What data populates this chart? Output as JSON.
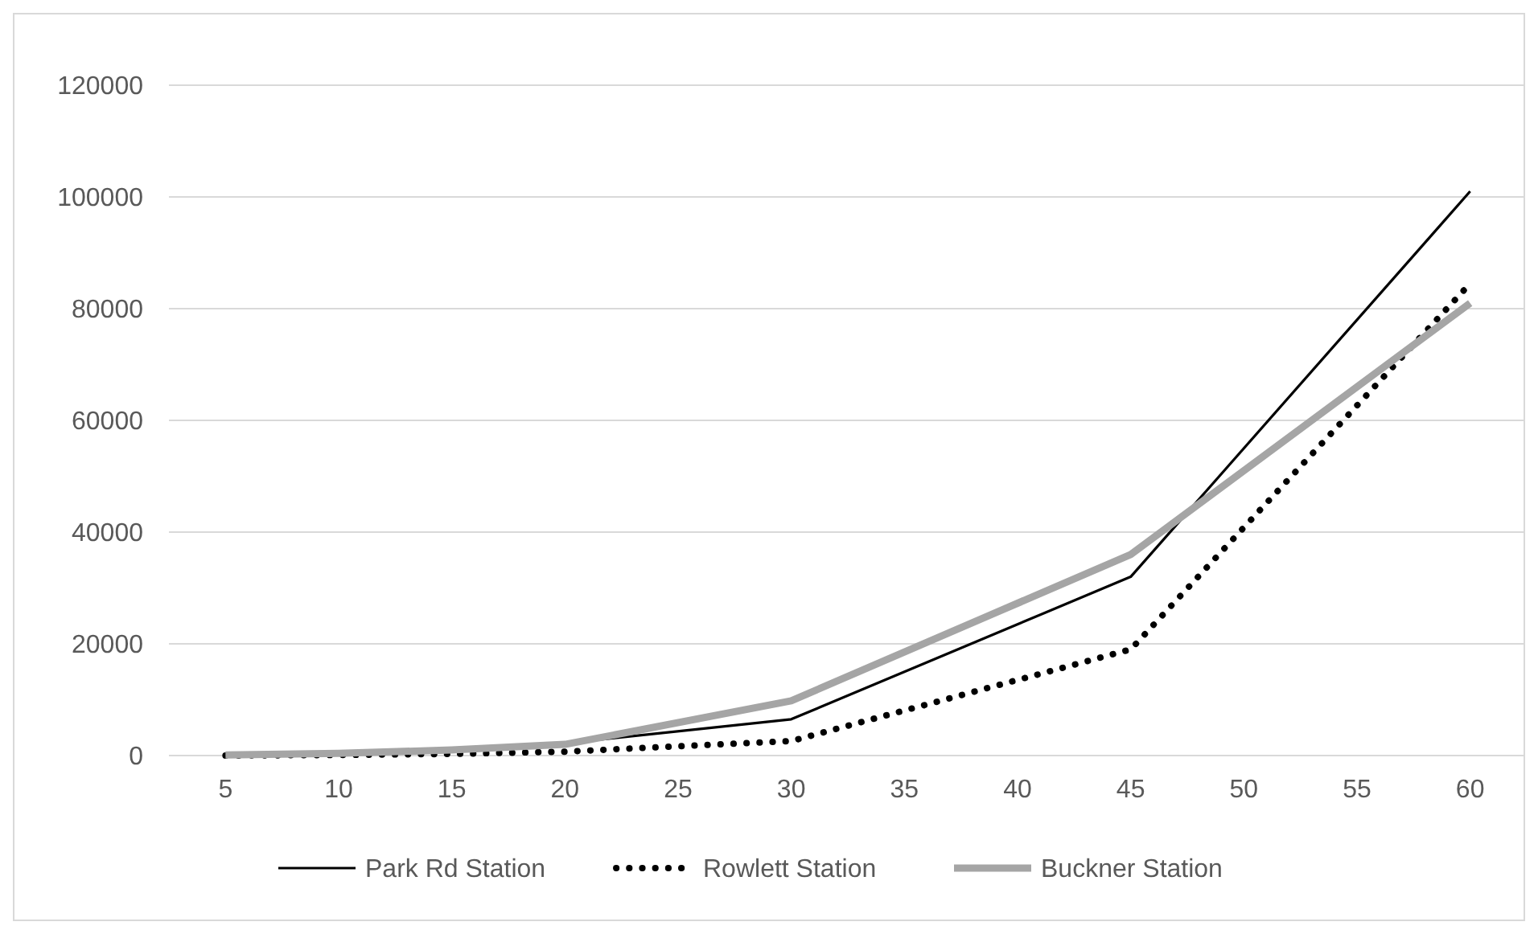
{
  "chart_data": {
    "type": "line",
    "x": [
      5,
      10,
      15,
      20,
      30,
      45,
      60
    ],
    "xlim": [
      2.5,
      62.5
    ],
    "xticks": [
      5,
      10,
      15,
      20,
      25,
      30,
      35,
      40,
      45,
      50,
      55,
      60
    ],
    "ylim": [
      0,
      120000
    ],
    "yticks": [
      0,
      20000,
      40000,
      60000,
      80000,
      100000,
      120000
    ],
    "grid": "y",
    "legend": "bottom",
    "marker": "none",
    "series": [
      {
        "name": "Park Rd Station",
        "color": "#000000",
        "line_style": "solid",
        "values": [
          100,
          400,
          1000,
          2200,
          6500,
          32000,
          101000
        ]
      },
      {
        "name": "Rowlett Station",
        "color": "#000000",
        "line_style": "dotted",
        "values": [
          0,
          100,
          300,
          700,
          2600,
          19000,
          84500
        ]
      },
      {
        "name": "Buckner Station",
        "color": "#a5a5a5",
        "line_style": "solid",
        "values": [
          100,
          400,
          1000,
          2000,
          9800,
          36000,
          81000
        ]
      }
    ]
  }
}
